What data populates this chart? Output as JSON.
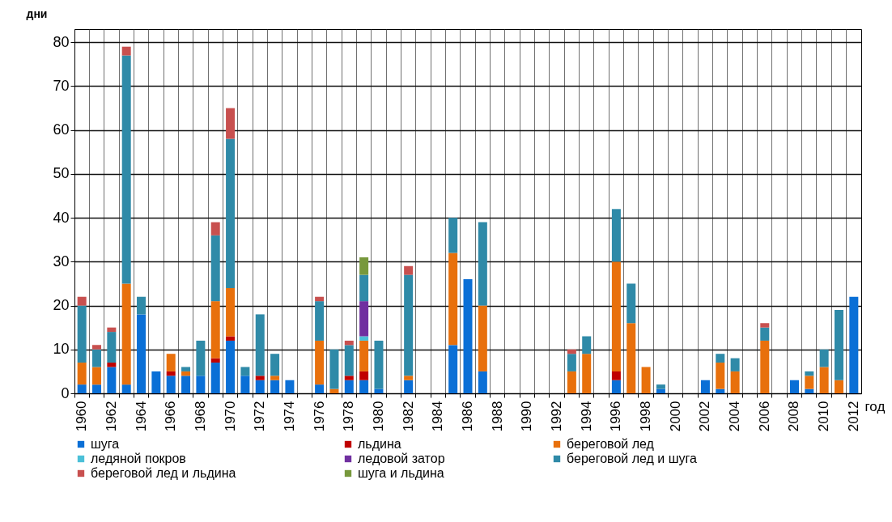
{
  "chart_data": {
    "type": "bar",
    "stacked": true,
    "xlabel": "год",
    "ylabel": "дни",
    "ylim": [
      0,
      83
    ],
    "yticks": [
      0,
      10,
      20,
      30,
      40,
      50,
      60,
      70,
      80
    ],
    "grid": true,
    "legend": "bottom",
    "categories": [
      "1960",
      null,
      "1962",
      null,
      "1964",
      null,
      "1966",
      null,
      "1968",
      null,
      "1970",
      null,
      "1972",
      null,
      "1974",
      null,
      "1976",
      null,
      "1978",
      null,
      "1980",
      null,
      "1982",
      null,
      "1984",
      null,
      "1986",
      null,
      "1988",
      null,
      "1990",
      null,
      "1992",
      null,
      "1994",
      null,
      "1996",
      null,
      "1998",
      null,
      "2000",
      null,
      "2002",
      null,
      "2004",
      null,
      "2006",
      null,
      "2008",
      null,
      "2010",
      null,
      "2012"
    ],
    "series": [
      {
        "name": "шуга",
        "color": "#0a6fd6",
        "values": [
          2,
          2,
          6,
          2,
          18,
          5,
          4,
          4,
          4,
          7,
          12,
          4,
          3,
          3,
          3,
          null,
          2,
          null,
          3,
          3,
          1,
          null,
          3,
          null,
          null,
          11,
          26,
          5,
          null,
          null,
          null,
          null,
          null,
          null,
          null,
          null,
          3,
          null,
          null,
          1,
          null,
          null,
          3,
          1,
          null,
          null,
          null,
          null,
          3,
          1,
          null,
          null,
          22
        ]
      },
      {
        "name": "льдина",
        "color": "#c00000",
        "values": [
          null,
          null,
          1,
          null,
          null,
          null,
          1,
          null,
          null,
          1,
          1,
          null,
          1,
          null,
          null,
          null,
          null,
          null,
          1,
          2,
          null,
          null,
          null,
          null,
          null,
          null,
          null,
          null,
          null,
          null,
          null,
          null,
          null,
          null,
          null,
          null,
          2,
          null,
          null,
          null,
          null,
          null,
          null,
          null,
          null,
          null,
          null,
          null,
          null,
          null,
          null,
          null,
          null
        ]
      },
      {
        "name": "береговой лед",
        "color": "#e8700c",
        "values": [
          5,
          4,
          null,
          23,
          null,
          null,
          4,
          1,
          null,
          13,
          11,
          null,
          null,
          1,
          null,
          null,
          10,
          1,
          null,
          7,
          null,
          null,
          1,
          null,
          null,
          21,
          null,
          15,
          null,
          null,
          null,
          null,
          null,
          5,
          9,
          null,
          25,
          16,
          6,
          null,
          null,
          null,
          null,
          6,
          5,
          null,
          12,
          null,
          null,
          3,
          6,
          3,
          null
        ]
      },
      {
        "name": "ледяной покров",
        "color": "#4bc0d8",
        "values": [
          null,
          null,
          null,
          null,
          null,
          null,
          null,
          null,
          null,
          null,
          null,
          null,
          null,
          null,
          null,
          null,
          null,
          null,
          null,
          1,
          null,
          null,
          null,
          null,
          null,
          null,
          null,
          null,
          null,
          null,
          null,
          null,
          null,
          null,
          null,
          null,
          null,
          null,
          null,
          null,
          null,
          null,
          null,
          null,
          null,
          null,
          null,
          null,
          null,
          null,
          null,
          null,
          null
        ]
      },
      {
        "name": "ледовой затор",
        "color": "#7030a0",
        "values": [
          null,
          null,
          null,
          null,
          null,
          null,
          null,
          null,
          null,
          null,
          null,
          null,
          null,
          null,
          null,
          null,
          null,
          null,
          null,
          8,
          null,
          null,
          null,
          null,
          null,
          null,
          null,
          null,
          null,
          null,
          null,
          null,
          null,
          null,
          null,
          null,
          null,
          null,
          null,
          null,
          null,
          null,
          null,
          null,
          null,
          null,
          null,
          null,
          null,
          null,
          null,
          null,
          null
        ]
      },
      {
        "name": "береговой лед и шуга",
        "color": "#2f8aa8",
        "values": [
          13,
          4,
          7,
          52,
          4,
          null,
          null,
          1,
          8,
          15,
          34,
          2,
          14,
          5,
          null,
          null,
          9,
          9,
          7,
          6,
          11,
          null,
          23,
          null,
          null,
          8,
          null,
          19,
          null,
          null,
          null,
          null,
          null,
          4,
          4,
          null,
          12,
          9,
          null,
          1,
          null,
          null,
          null,
          2,
          3,
          null,
          3,
          null,
          null,
          1,
          4,
          16,
          null
        ]
      },
      {
        "name": "береговой лед и льдина",
        "color": "#c8504f",
        "values": [
          2,
          1,
          1,
          2,
          null,
          null,
          null,
          null,
          null,
          3,
          7,
          null,
          null,
          null,
          null,
          null,
          1,
          null,
          1,
          null,
          null,
          null,
          2,
          null,
          null,
          null,
          null,
          null,
          null,
          null,
          null,
          null,
          null,
          1,
          null,
          null,
          null,
          null,
          null,
          null,
          null,
          null,
          null,
          null,
          null,
          null,
          1,
          null,
          null,
          null,
          null,
          null,
          null
        ]
      },
      {
        "name": "шуга и льдина",
        "color": "#77983c",
        "values": [
          null,
          null,
          null,
          null,
          null,
          null,
          null,
          null,
          null,
          null,
          null,
          null,
          null,
          null,
          null,
          null,
          null,
          null,
          null,
          4,
          null,
          null,
          null,
          null,
          null,
          null,
          null,
          null,
          null,
          null,
          null,
          null,
          null,
          null,
          null,
          null,
          null,
          null,
          null,
          null,
          null,
          null,
          null,
          null,
          null,
          null,
          null,
          null,
          null,
          null,
          null,
          null,
          null
        ]
      }
    ]
  }
}
